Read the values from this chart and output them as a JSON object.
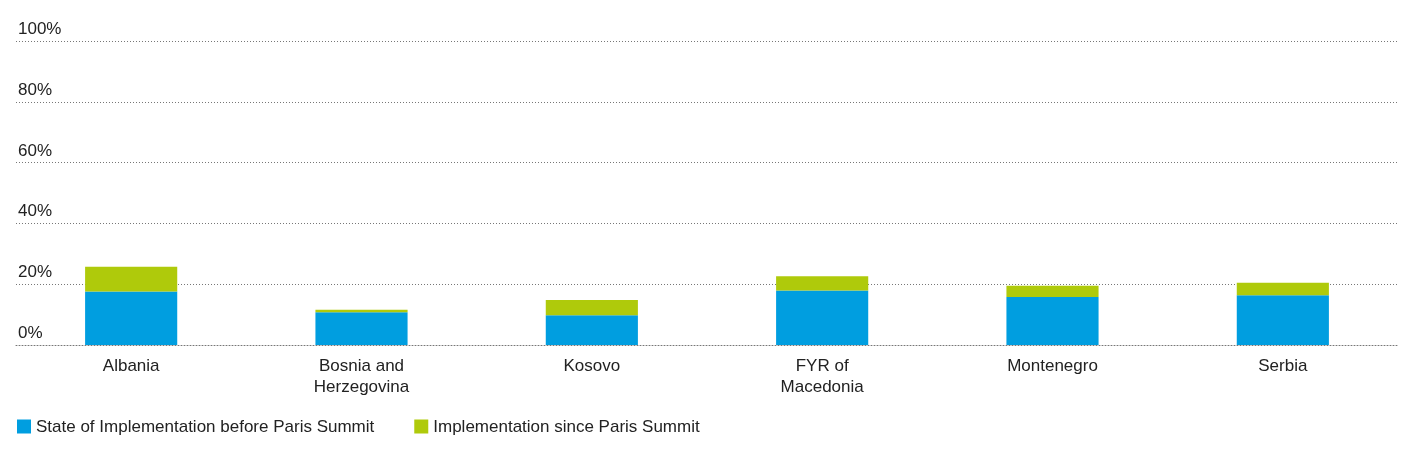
{
  "chart_data": {
    "type": "bar",
    "stacked": true,
    "categories": [
      "Albania",
      "Bosnia and\nHerzegovina",
      "Kosovo",
      "FYR of\nMacedonia",
      "Montenegro",
      "Serbia"
    ],
    "series": [
      {
        "name": "State of Implementation before Paris Summit",
        "color": "#009ee0",
        "values": [
          17.6,
          10.8,
          9.8,
          17.9,
          15.8,
          16.4
        ]
      },
      {
        "name": "Implementation since Paris Summit",
        "color": "#afca0b",
        "values": [
          8.1,
          0.8,
          5.0,
          4.7,
          3.7,
          4.1
        ]
      }
    ],
    "ylim": [
      0,
      100
    ],
    "yticks": [
      {
        "value": 0,
        "label": "0%"
      },
      {
        "value": 20,
        "label": "20%"
      },
      {
        "value": 40,
        "label": "40%"
      },
      {
        "value": 60,
        "label": "60%"
      },
      {
        "value": 80,
        "label": "80%"
      },
      {
        "value": 100,
        "label": "100%"
      }
    ],
    "grid": "y",
    "legend": "bottom left"
  }
}
